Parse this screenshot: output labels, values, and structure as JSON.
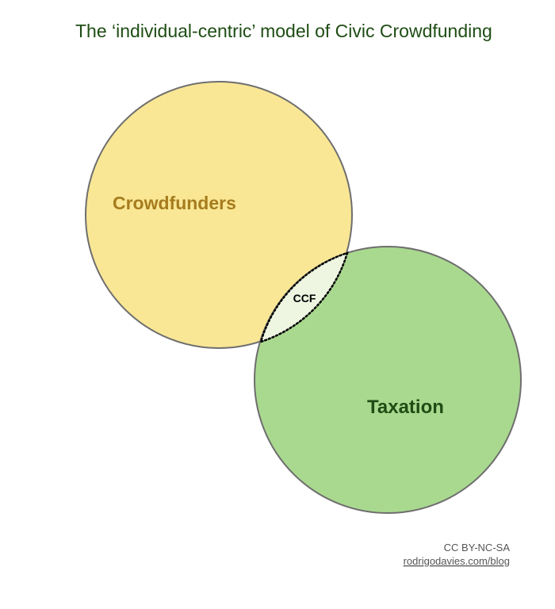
{
  "title": "The ‘individual-centric’ model of Civic Crowdfunding",
  "sets": [
    {
      "name": "crowdfunders",
      "label": "Crowdfunders",
      "fill": "#f9e795",
      "stroke": "#6e6e6e",
      "label_color": "#a67c1e"
    },
    {
      "name": "taxation",
      "label": "Taxation",
      "fill": "#a9d98f",
      "stroke": "#6e6e6e",
      "label_color": "#1e4d14"
    }
  ],
  "intersection": {
    "label": "CCF",
    "fill": "#eef5e1",
    "stroke": "#000000",
    "stroke_style": "dotted"
  },
  "credit": {
    "license": "CC BY-NC-SA",
    "link": "rodrigodavies.com/blog"
  },
  "colors": {
    "title": "#1e4d14",
    "credit": "#555555"
  }
}
